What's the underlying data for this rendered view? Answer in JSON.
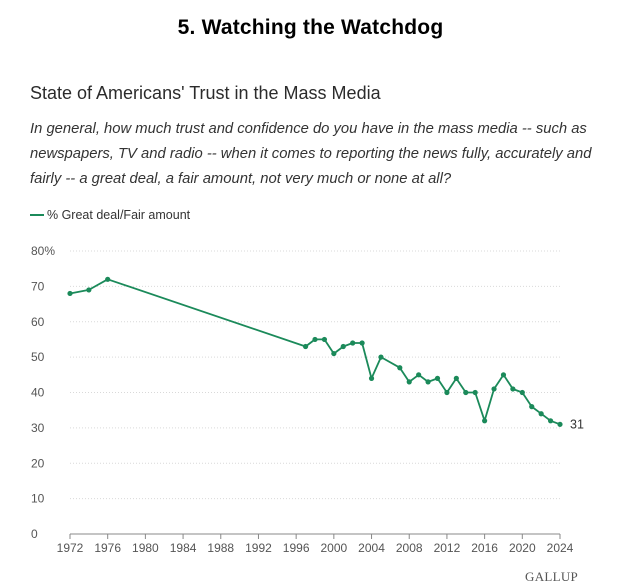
{
  "heading": "5. Watching the Watchdog",
  "brand": "GALLUP",
  "colors": {
    "series": "#1b8a5a",
    "grid": "#d9d9d9",
    "axis": "#888888"
  },
  "chart_data": {
    "type": "line",
    "title": "State of Americans' Trust in the Mass Media",
    "subtitle": "In general, how much trust and confidence do you have in the mass media -- such as newspapers, TV and radio -- when it comes to reporting the news fully, accurately and fairly -- a great deal, a fair amount, not very much or none at all?",
    "legend_position": "top-left",
    "grid": true,
    "xlim": [
      1972,
      2024
    ],
    "ylim": [
      0,
      80
    ],
    "x_ticks": [
      "1972",
      "1976",
      "1980",
      "1984",
      "1988",
      "1992",
      "1996",
      "2000",
      "2004",
      "2008",
      "2012",
      "2016",
      "2020",
      "2024"
    ],
    "y_ticks": [
      "0",
      "10",
      "20",
      "30",
      "40",
      "50",
      "60",
      "70",
      "80%"
    ],
    "series": [
      {
        "name": "% Great deal/Fair amount",
        "x": [
          1972,
          1974,
          1976,
          1997,
          1998,
          1999,
          2000,
          2001,
          2002,
          2003,
          2004,
          2005,
          2007,
          2008,
          2009,
          2010,
          2011,
          2012,
          2013,
          2014,
          2015,
          2016,
          2017,
          2018,
          2019,
          2020,
          2021,
          2022,
          2023,
          2024
        ],
        "values": [
          68,
          69,
          72,
          53,
          55,
          55,
          51,
          53,
          54,
          54,
          44,
          50,
          47,
          43,
          45,
          43,
          44,
          40,
          44,
          40,
          40,
          32,
          41,
          45,
          41,
          40,
          36,
          34,
          32,
          31
        ]
      }
    ],
    "annotations": [
      {
        "x": 2024,
        "y": 31,
        "text": "31"
      }
    ]
  }
}
